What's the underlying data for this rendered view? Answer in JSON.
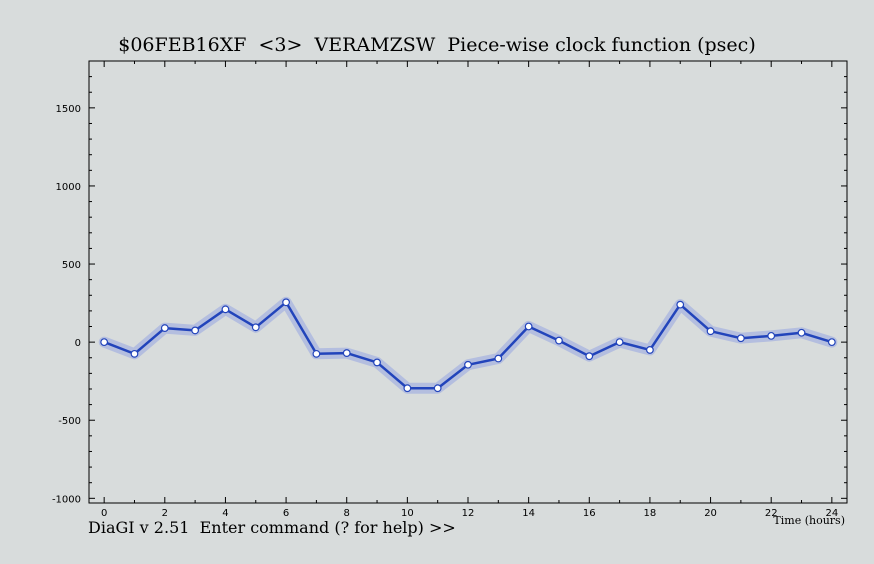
{
  "chart_data": {
    "type": "line",
    "title": "$06FEB16XF  <3>  VERAMZSW  Piece-wise clock function (psec)",
    "xlabel": "Time (hours)",
    "ylabel": "",
    "xlim": [
      -0.5,
      24.5
    ],
    "ylim": [
      -1030,
      1800
    ],
    "x_ticks": [
      0,
      2,
      4,
      6,
      8,
      10,
      12,
      14,
      16,
      18,
      20,
      22,
      24
    ],
    "y_ticks": [
      1500,
      1000,
      500,
      0,
      -500,
      -1000
    ],
    "grid": false,
    "series": [
      {
        "x": [
          0,
          1,
          2,
          3,
          4,
          5,
          6,
          7,
          8,
          9,
          10,
          11,
          12,
          13,
          14,
          15,
          16,
          17,
          18,
          19,
          20,
          21,
          22,
          23,
          24
        ],
        "values": [
          0,
          -75,
          90,
          75,
          210,
          95,
          255,
          -75,
          -70,
          -130,
          -295,
          -295,
          -145,
          -105,
          100,
          10,
          -90,
          0,
          -50,
          240,
          70,
          25,
          40,
          60,
          0
        ]
      }
    ],
    "line_color": "#2244bb",
    "band_color": "#a8b4e0",
    "marker_fill": "#ffffff"
  },
  "status": {
    "prompt": "DiaGI v 2.51  Enter command (? for help) >>"
  }
}
